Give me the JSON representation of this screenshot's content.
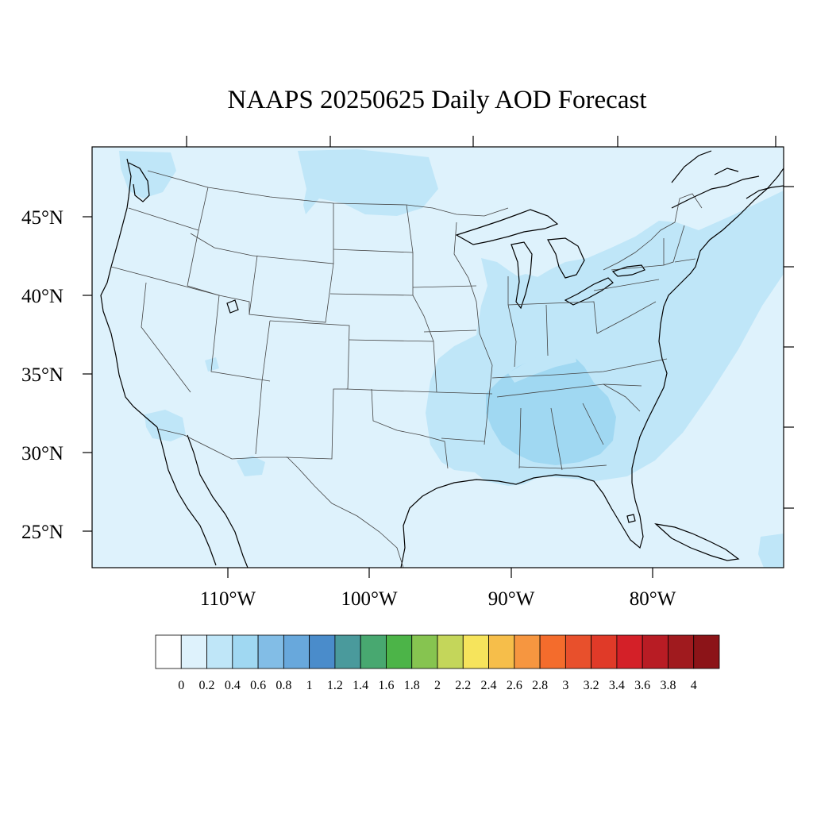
{
  "title": "NAAPS 20250625 Daily AOD Forecast",
  "map": {
    "lat_labels": [
      "45°N",
      "40°N",
      "35°N",
      "30°N",
      "25°N"
    ],
    "lon_labels": [
      "110°W",
      "100°W",
      "90°W",
      "80°W"
    ],
    "background_value": "0.0–0.2",
    "colors": {
      "background_fill": "#def2fc",
      "light_blue_fill": "#bfe6f8",
      "coast": "#000000",
      "state_lines": "#444444"
    }
  },
  "colorbar": {
    "labels": [
      "0",
      "0.2",
      "0.4",
      "0.6",
      "0.8",
      "1",
      "1.2",
      "1.4",
      "1.6",
      "1.8",
      "2",
      "2.2",
      "2.4",
      "2.6",
      "2.8",
      "3",
      "3.2",
      "3.4",
      "3.6",
      "3.8",
      "4"
    ],
    "colors": [
      "#ffffff",
      "#def2fc",
      "#bfe6f8",
      "#a0d8f2",
      "#82bde6",
      "#68a8dc",
      "#4a8ccb",
      "#4a9a9c",
      "#48a870",
      "#4cb448",
      "#86c450",
      "#c4d65a",
      "#f6e45c",
      "#f6be4a",
      "#f69640",
      "#f46c2c",
      "#e8502c",
      "#e03a28",
      "#d42028",
      "#b81c24",
      "#a01a1e",
      "#8c1418"
    ]
  }
}
